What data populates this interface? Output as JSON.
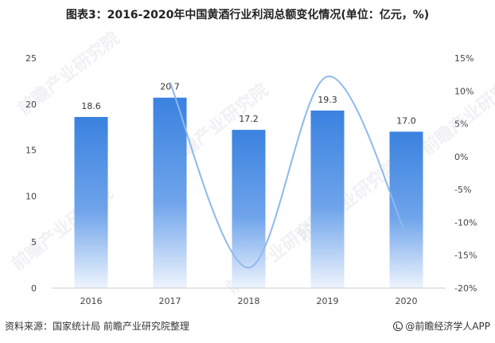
{
  "header": {
    "title": "图表3：2016-2020年中国黄酒行业利润总额变化情况(单位：亿元，%)"
  },
  "footer": {
    "source": "资料来源：国家统计局 前瞻产业研究院整理",
    "brand": "@前瞻经济学人APP"
  },
  "watermark": {
    "text": "前瞻产业研究院"
  },
  "chart_data": {
    "type": "bar",
    "categories": [
      "2016",
      "2017",
      "2018",
      "2019",
      "2020"
    ],
    "series": [
      {
        "type": "bar",
        "axis": "left",
        "values": [
          18.6,
          20.7,
          17.2,
          19.3,
          17.0
        ],
        "labels": [
          "18.6",
          "20.7",
          "17.2",
          "19.3",
          "17.0"
        ],
        "color": "#3f86e0"
      },
      {
        "type": "line",
        "axis": "right",
        "smooth": true,
        "values": [
          null,
          11.3,
          -16.9,
          12.2,
          -11.9
        ],
        "color": "#8fb8ec"
      }
    ],
    "y_left": {
      "min": 0,
      "max": 25,
      "ticks": [
        0,
        5,
        10,
        15,
        20,
        25
      ],
      "tick_labels": [
        "0",
        "5",
        "10",
        "15",
        "20",
        "25"
      ]
    },
    "y_right": {
      "min": -20,
      "max": 15,
      "ticks": [
        -20,
        -15,
        -10,
        -5,
        0,
        5,
        10,
        15
      ],
      "tick_labels": [
        "-20%",
        "-15%",
        "-10%",
        "-5%",
        "0%",
        "5%",
        "10%",
        "15%"
      ]
    },
    "grid": false,
    "legend": "none"
  }
}
